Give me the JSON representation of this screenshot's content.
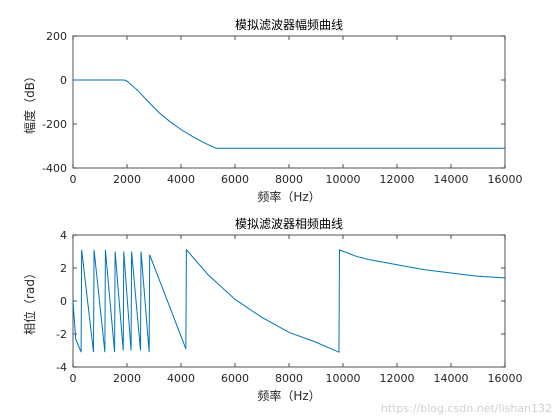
{
  "watermark": "https://blog.csdn.net/lishan132",
  "chart_data": [
    {
      "type": "line",
      "title": "模拟滤波器幅频曲线",
      "xlabel": "频率（Hz）",
      "ylabel": "幅度（dB）",
      "xlim": [
        0,
        16000
      ],
      "ylim": [
        -400,
        200
      ],
      "xticks": [
        0,
        2000,
        4000,
        6000,
        8000,
        10000,
        12000,
        14000,
        16000
      ],
      "yticks": [
        -400,
        -200,
        0,
        200
      ],
      "grid": false,
      "line_color": "#0072BD",
      "series": [
        {
          "x": [
            0,
            1900,
            2000,
            2400,
            2800,
            3200,
            3600,
            4000,
            4400,
            4800,
            5200,
            5300,
            6000,
            8000,
            10000,
            12000,
            14000,
            16000
          ],
          "y": [
            0,
            0,
            -5,
            -48,
            -100,
            -150,
            -190,
            -225,
            -255,
            -282,
            -305,
            -310,
            -310,
            -310,
            -310,
            -310,
            -310,
            -310
          ]
        }
      ]
    },
    {
      "type": "line",
      "title": "模拟滤波器相频曲线",
      "xlabel": "频率（Hz）",
      "ylabel": "相位（rad）",
      "xlim": [
        0,
        16000
      ],
      "ylim": [
        -4,
        4
      ],
      "xticks": [
        0,
        2000,
        4000,
        6000,
        8000,
        10000,
        12000,
        14000,
        16000
      ],
      "yticks": [
        -4,
        -2,
        0,
        2,
        4
      ],
      "grid": false,
      "line_color": "#0072BD",
      "series": [
        {
          "x": [
            0,
            100,
            300,
            320,
            760,
            780,
            1180,
            1200,
            1540,
            1560,
            1860,
            1880,
            2150,
            2170,
            2500,
            2520,
            2820,
            2840,
            4180,
            4200,
            5000,
            6000,
            7000,
            8000,
            9000,
            9850,
            9870,
            10500,
            11000,
            12000,
            13000,
            14000,
            15000,
            16000
          ],
          "y": [
            0,
            -2.3,
            -3.1,
            3.1,
            -3.1,
            3.1,
            -3.1,
            3.1,
            -3.1,
            3.0,
            -3.0,
            3.0,
            -3.0,
            3.0,
            -3.0,
            3.0,
            -3.1,
            2.8,
            -2.9,
            3.1,
            1.6,
            0.1,
            -1.0,
            -1.9,
            -2.5,
            -3.1,
            3.1,
            2.7,
            2.5,
            2.2,
            1.9,
            1.7,
            1.5,
            1.4
          ]
        }
      ]
    }
  ]
}
